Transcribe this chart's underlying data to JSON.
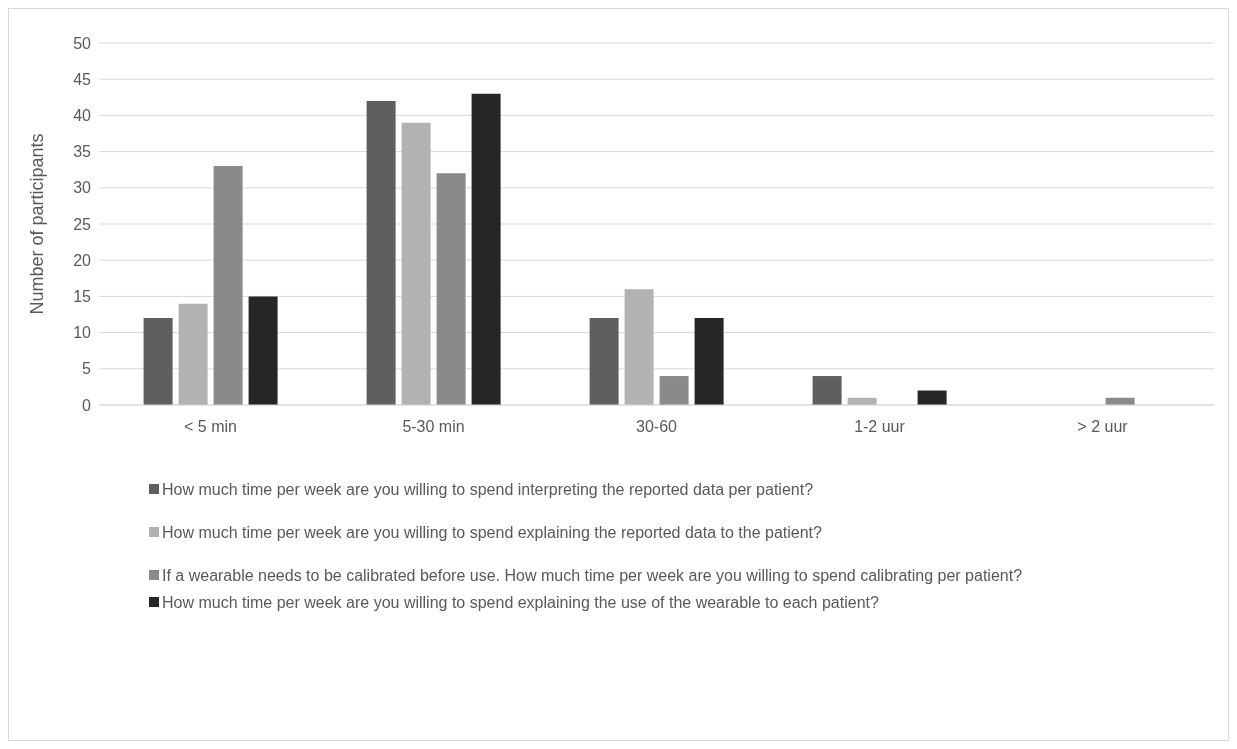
{
  "chart_data": {
    "type": "bar",
    "ylabel": "Number of participants",
    "categories": [
      "< 5 min",
      "5-30 min",
      "30-60",
      "1-2 uur",
      "> 2 uur"
    ],
    "series": [
      {
        "name": "How much time per week are you willing to spend interpreting the reported data per patient?",
        "color": "#5f5f5f",
        "values": [
          12,
          42,
          12,
          4,
          0
        ]
      },
      {
        "name": "How much time per week are you willing to spend explaining the reported data to the patient?",
        "color": "#b2b2b2",
        "values": [
          14,
          39,
          16,
          1,
          0
        ]
      },
      {
        "name": "If a wearable needs to be calibrated before use. How much time per week are you willing to spend calibrating per patient?",
        "color": "#8a8a8a",
        "values": [
          33,
          32,
          4,
          0,
          1
        ]
      },
      {
        "name": "How much time per week are you willing to spend explaining the use of the wearable to each patient?",
        "color": "#262626",
        "values": [
          15,
          43,
          12,
          2,
          0
        ]
      }
    ],
    "ylim": [
      0,
      50
    ],
    "yticks": [
      0,
      5,
      10,
      15,
      20,
      25,
      30,
      35,
      40,
      45,
      50
    ],
    "grid": "y",
    "legend": "bottom"
  }
}
